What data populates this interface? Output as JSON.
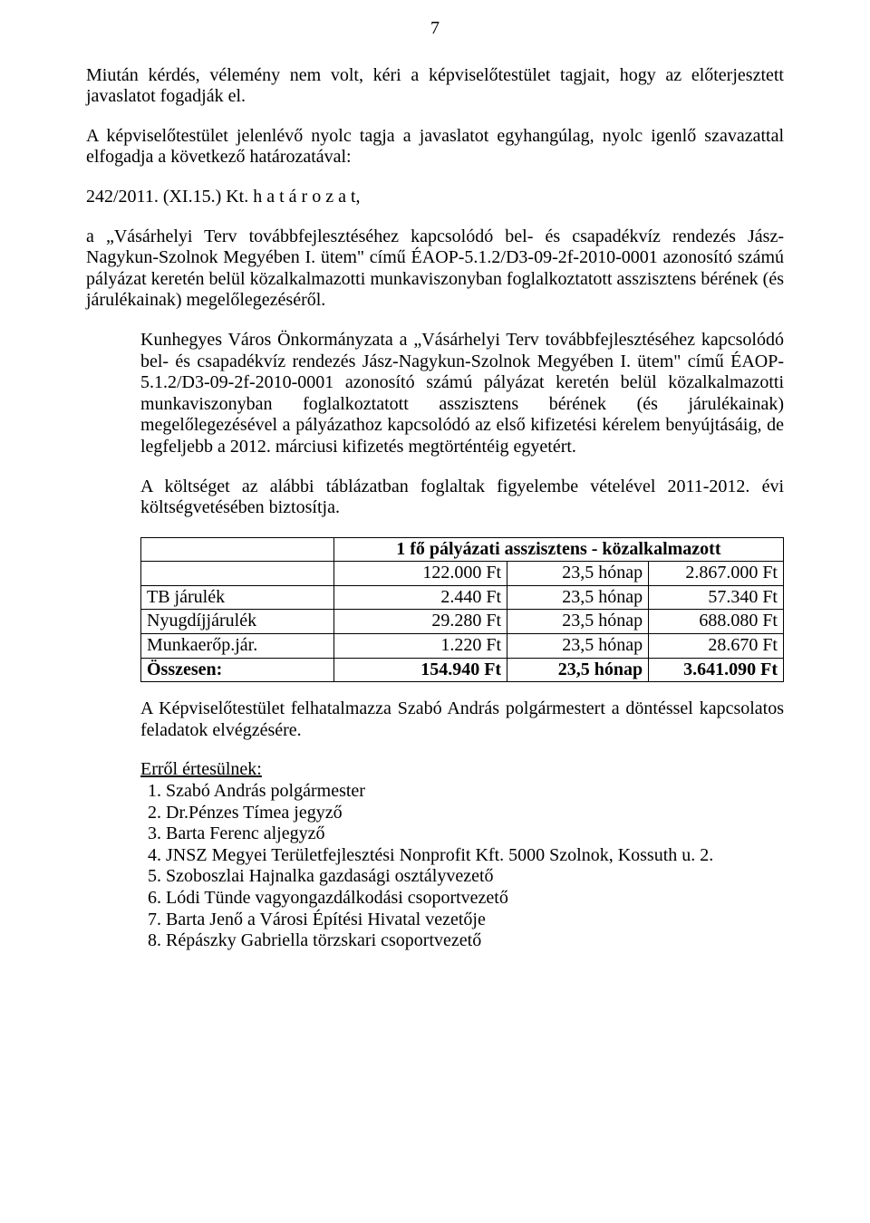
{
  "page_number": "7",
  "p1": "Miután kérdés, vélemény nem volt, kéri a képviselőtestület tagjait, hogy az előterjesztett javaslatot fogadják el.",
  "p2": "A képviselőtestület jelenlévő nyolc tagja a javaslatot egyhangúlag, nyolc igenlő szavazattal elfogadja a következő határozatával:",
  "p3": "242/2011. (XI.15.) Kt. h a t á r o z a t,",
  "p4": "a „Vásárhelyi Terv továbbfejlesztéséhez kapcsolódó bel- és csapadékvíz rendezés Jász-Nagykun-Szolnok Megyében I. ütem\" című ÉAOP-5.1.2/D3-09-2f-2010-0001 azonosító számú pályázat keretén belül közalkalmazotti munkaviszonyban foglalkoztatott asszisztens bérének (és járulékainak) megelőlegezéséről.",
  "p5": "Kunhegyes Város Önkormányzata a „Vásárhelyi Terv továbbfejlesztéséhez kapcsolódó bel- és csapadékvíz rendezés Jász-Nagykun-Szolnok Megyében I. ütem\" című ÉAOP-5.1.2/D3-09-2f-2010-0001 azonosító számú pályázat keretén belül közalkalmazotti munkaviszonyban foglalkoztatott asszisztens bérének (és járulékainak) megelőlegezésével a pályázathoz kapcsolódó az első kifizetési kérelem benyújtásáig, de legfeljebb a 2012. márciusi kifizetés megtörténtéig egyetért.",
  "p6": "A költséget az alábbi táblázatban foglaltak figyelembe vételével 2011-2012. évi költségvetésében biztosítja.",
  "table": {
    "header": "1 fő pályázati asszisztens - közalkalmazott",
    "rows": [
      {
        "label": "",
        "c2": "122.000 Ft",
        "c3": "23,5 hónap",
        "c4": "2.867.000 Ft"
      },
      {
        "label": "TB járulék",
        "c2": "2.440 Ft",
        "c3": "23,5 hónap",
        "c4": "57.340 Ft"
      },
      {
        "label": "Nyugdíjjárulék",
        "c2": "29.280 Ft",
        "c3": "23,5 hónap",
        "c4": "688.080 Ft"
      },
      {
        "label": "Munkaerőp.jár.",
        "c2": "1.220 Ft",
        "c3": "23,5 hónap",
        "c4": "28.670 Ft"
      }
    ],
    "total": {
      "label": "Összesen:",
      "c2": "154.940 Ft",
      "c3": "23,5 hónap",
      "c4": "3.641.090 Ft"
    }
  },
  "p7": "A Képviselőtestület felhatalmazza Szabó András polgármestert a döntéssel kapcsolatos feladatok elvégzésére.",
  "notify_label": "Erről értesülnek:",
  "notify": [
    "Szabó András polgármester",
    "Dr.Pénzes Tímea jegyző",
    "Barta Ferenc aljegyző",
    "JNSZ Megyei Területfejlesztési Nonprofit Kft. 5000 Szolnok, Kossuth u. 2.",
    "Szoboszlai Hajnalka gazdasági osztályvezető",
    "Lódi Tünde vagyongazdálkodási csoportvezető",
    "Barta Jenő a Városi Építési Hivatal vezetője",
    "Répászky Gabriella törzskari csoportvezető"
  ]
}
